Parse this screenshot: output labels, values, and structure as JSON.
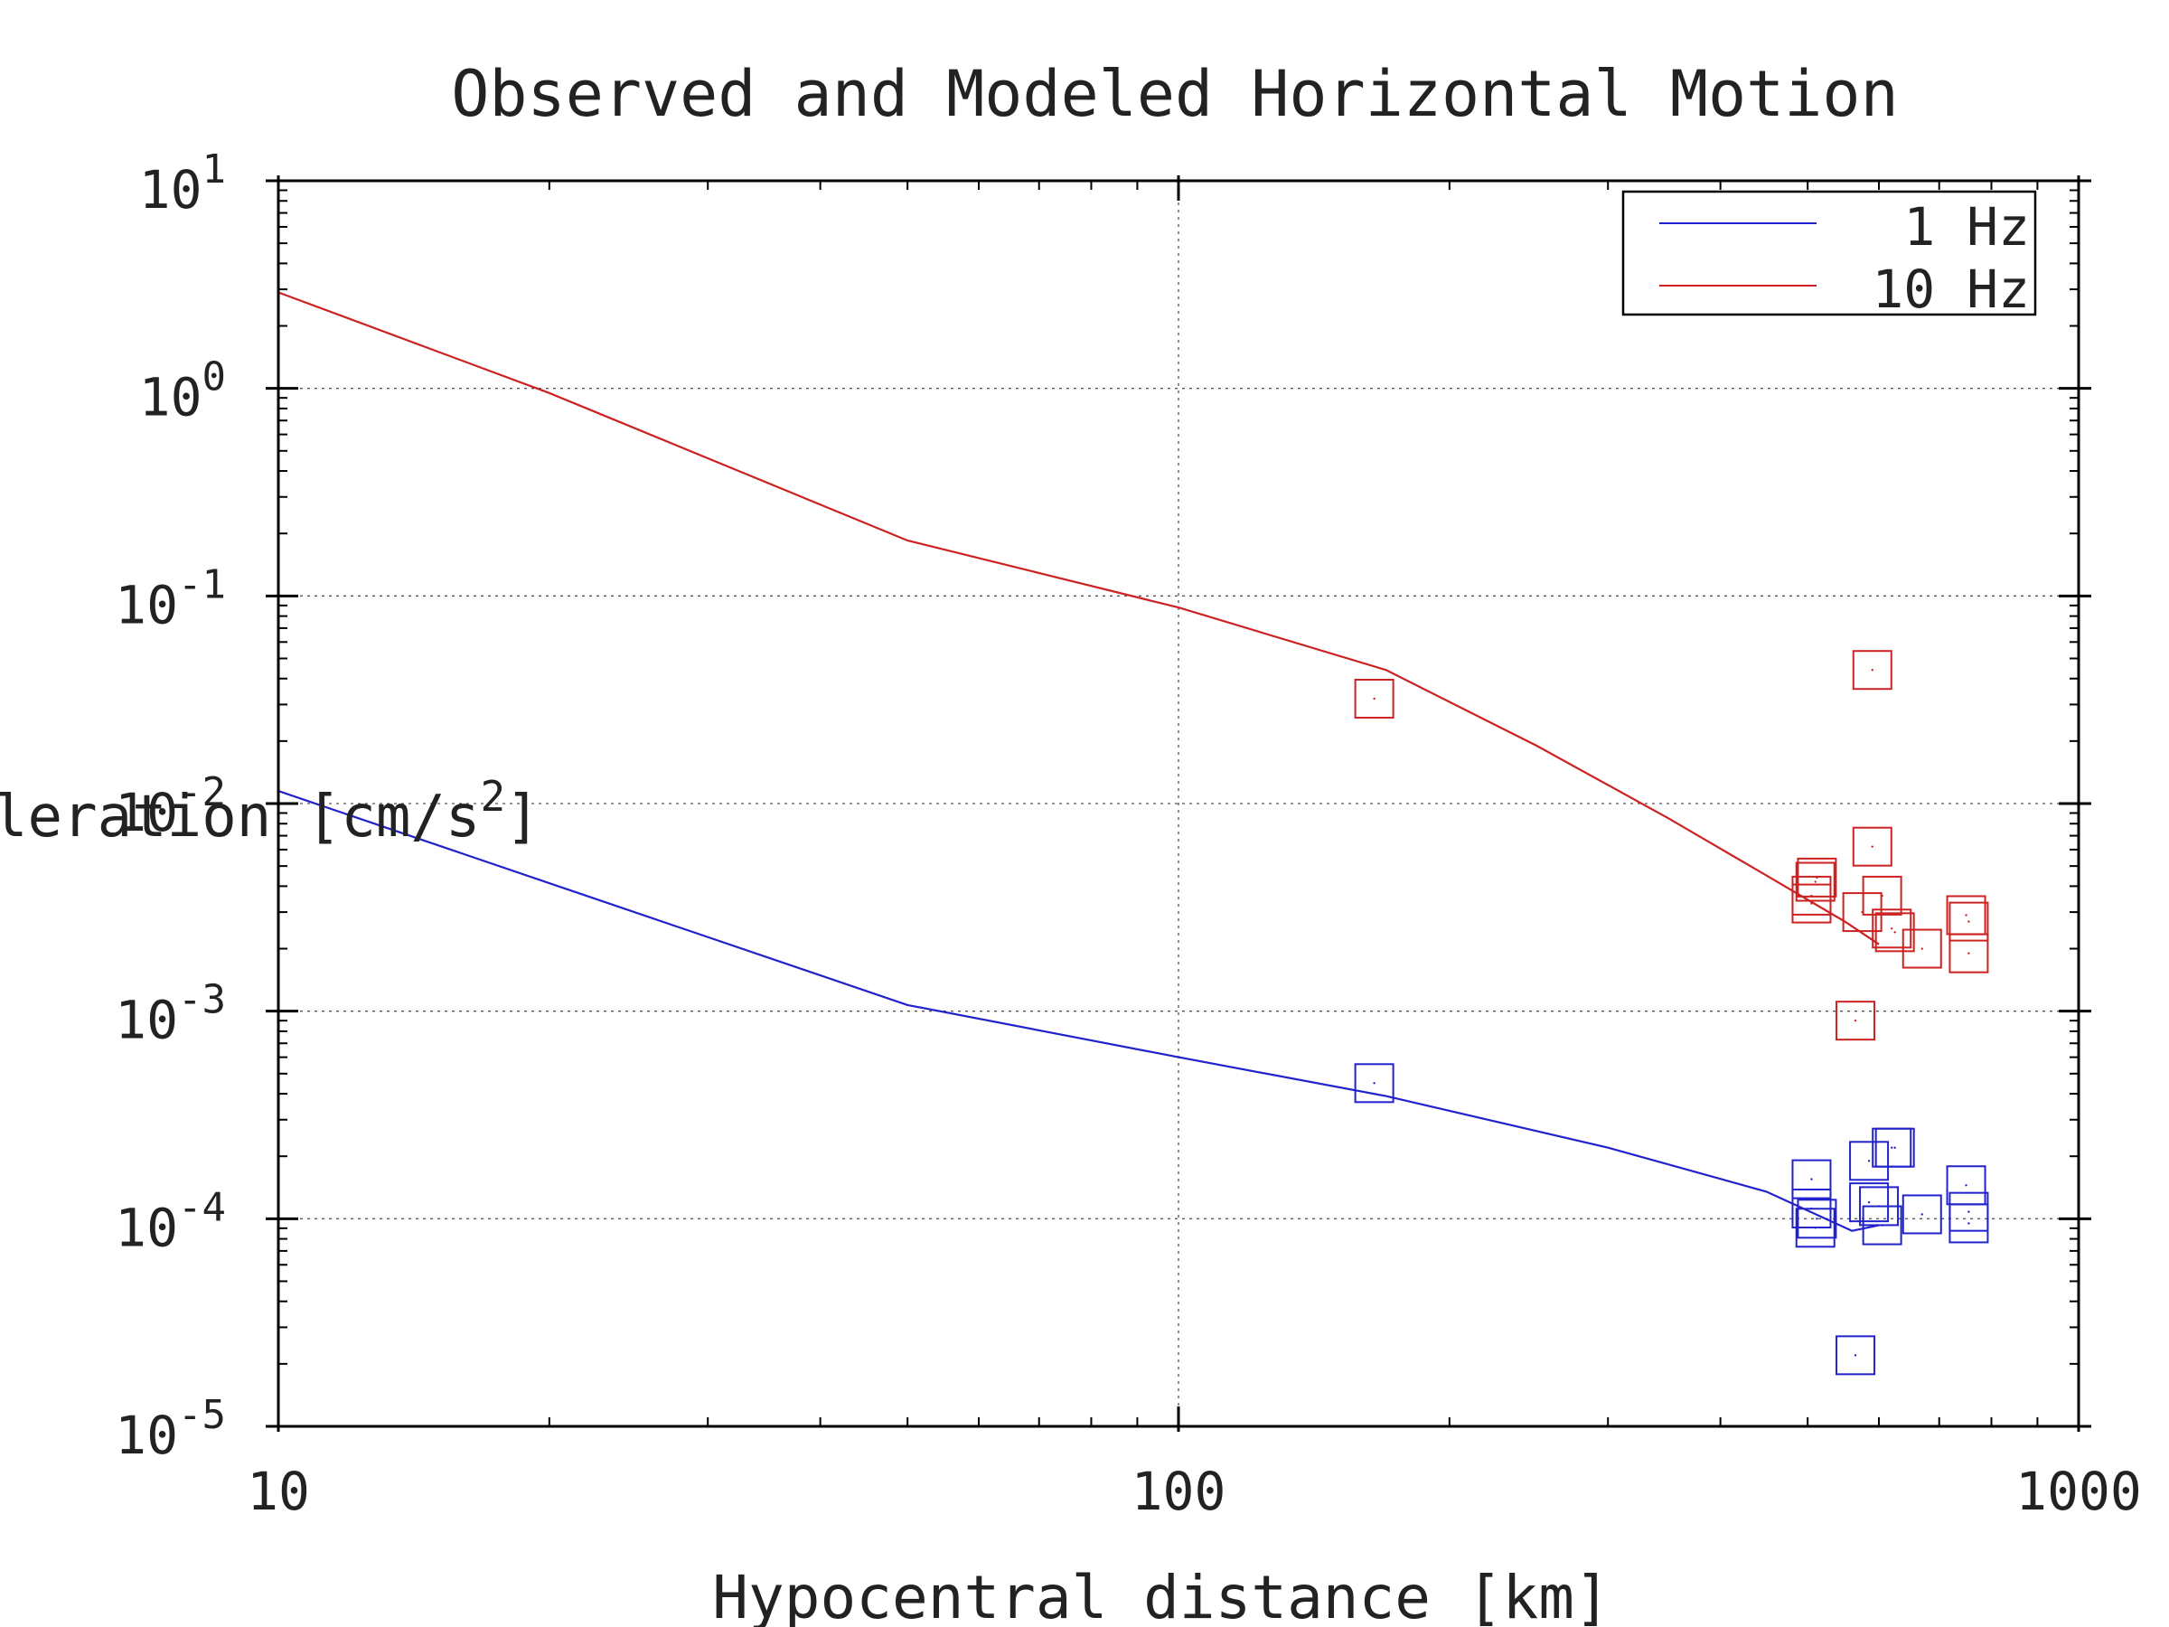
{
  "chart_data": {
    "type": "scatter",
    "title": "Observed and Modeled Horizontal Motion",
    "xlabel": "Hypocentral distance [km]",
    "ylabel_prefix": "leration [cm/s",
    "ylabel_sup": "2",
    "ylabel_suffix": "]",
    "x_scale": "log",
    "y_scale": "log",
    "xlim": [
      10,
      1000
    ],
    "ylim": [
      1e-05,
      10
    ],
    "x_ticks": [
      {
        "value": 10,
        "label": "10"
      },
      {
        "value": 100,
        "label": "100"
      },
      {
        "value": 1000,
        "label": "1000"
      }
    ],
    "y_ticks": [
      {
        "value": 10,
        "base": "10",
        "exp": "1"
      },
      {
        "value": 1,
        "base": "10",
        "exp": "0"
      },
      {
        "value": 0.1,
        "base": "10",
        "exp": "-1"
      },
      {
        "value": 0.01,
        "base": "10",
        "exp": "-2"
      },
      {
        "value": 0.001,
        "base": "10",
        "exp": "-3"
      },
      {
        "value": 0.0001,
        "base": "10",
        "exp": "-4"
      },
      {
        "value": 1e-05,
        "base": "10",
        "exp": "-5"
      }
    ],
    "grid": true,
    "legend_position": "top-right",
    "series": [
      {
        "name": "1 Hz",
        "color": "#2222cc",
        "model": [
          {
            "x": 10,
            "y": 0.0115
          },
          {
            "x": 50,
            "y": 0.00107
          },
          {
            "x": 100,
            "y": 0.0006
          },
          {
            "x": 170,
            "y": 0.00039
          },
          {
            "x": 300,
            "y": 0.00022
          },
          {
            "x": 450,
            "y": 0.000135
          },
          {
            "x": 560,
            "y": 8.75e-05
          },
          {
            "x": 600,
            "y": 9.3e-05
          }
        ],
        "observed": [
          {
            "x": 165,
            "y": 0.00045
          },
          {
            "x": 505,
            "y": 0.000155
          },
          {
            "x": 505,
            "y": 0.000112
          },
          {
            "x": 510,
            "y": 9.05e-05
          },
          {
            "x": 512,
            "y": 0.0001
          },
          {
            "x": 565,
            "y": 2.2e-05
          },
          {
            "x": 585,
            "y": 0.00019
          },
          {
            "x": 585,
            "y": 0.00012
          },
          {
            "x": 600,
            "y": 0.000115
          },
          {
            "x": 605,
            "y": 9.3e-05
          },
          {
            "x": 620,
            "y": 0.00022
          },
          {
            "x": 625,
            "y": 0.00022
          },
          {
            "x": 670,
            "y": 0.000105
          },
          {
            "x": 750,
            "y": 0.000145
          },
          {
            "x": 755,
            "y": 0.000108
          },
          {
            "x": 755,
            "y": 9.5e-05
          }
        ]
      },
      {
        "name": "10 Hz",
        "color": "#cc2222",
        "model": [
          {
            "x": 10,
            "y": 2.9
          },
          {
            "x": 20,
            "y": 0.95
          },
          {
            "x": 50,
            "y": 0.185
          },
          {
            "x": 100,
            "y": 0.088
          },
          {
            "x": 170,
            "y": 0.044
          },
          {
            "x": 250,
            "y": 0.019
          },
          {
            "x": 350,
            "y": 0.0085
          },
          {
            "x": 450,
            "y": 0.0045
          },
          {
            "x": 550,
            "y": 0.0027
          },
          {
            "x": 600,
            "y": 0.0021
          }
        ],
        "observed": [
          {
            "x": 165,
            "y": 0.032
          },
          {
            "x": 505,
            "y": 0.0036
          },
          {
            "x": 505,
            "y": 0.0033
          },
          {
            "x": 510,
            "y": 0.0042
          },
          {
            "x": 512,
            "y": 0.0044
          },
          {
            "x": 565,
            "y": 0.0009
          },
          {
            "x": 575,
            "y": 0.003
          },
          {
            "x": 590,
            "y": 0.044
          },
          {
            "x": 590,
            "y": 0.0062
          },
          {
            "x": 605,
            "y": 0.0036
          },
          {
            "x": 620,
            "y": 0.0025
          },
          {
            "x": 625,
            "y": 0.0024
          },
          {
            "x": 670,
            "y": 0.002
          },
          {
            "x": 750,
            "y": 0.0029
          },
          {
            "x": 755,
            "y": 0.0027
          },
          {
            "x": 755,
            "y": 0.0019
          }
        ]
      }
    ]
  }
}
